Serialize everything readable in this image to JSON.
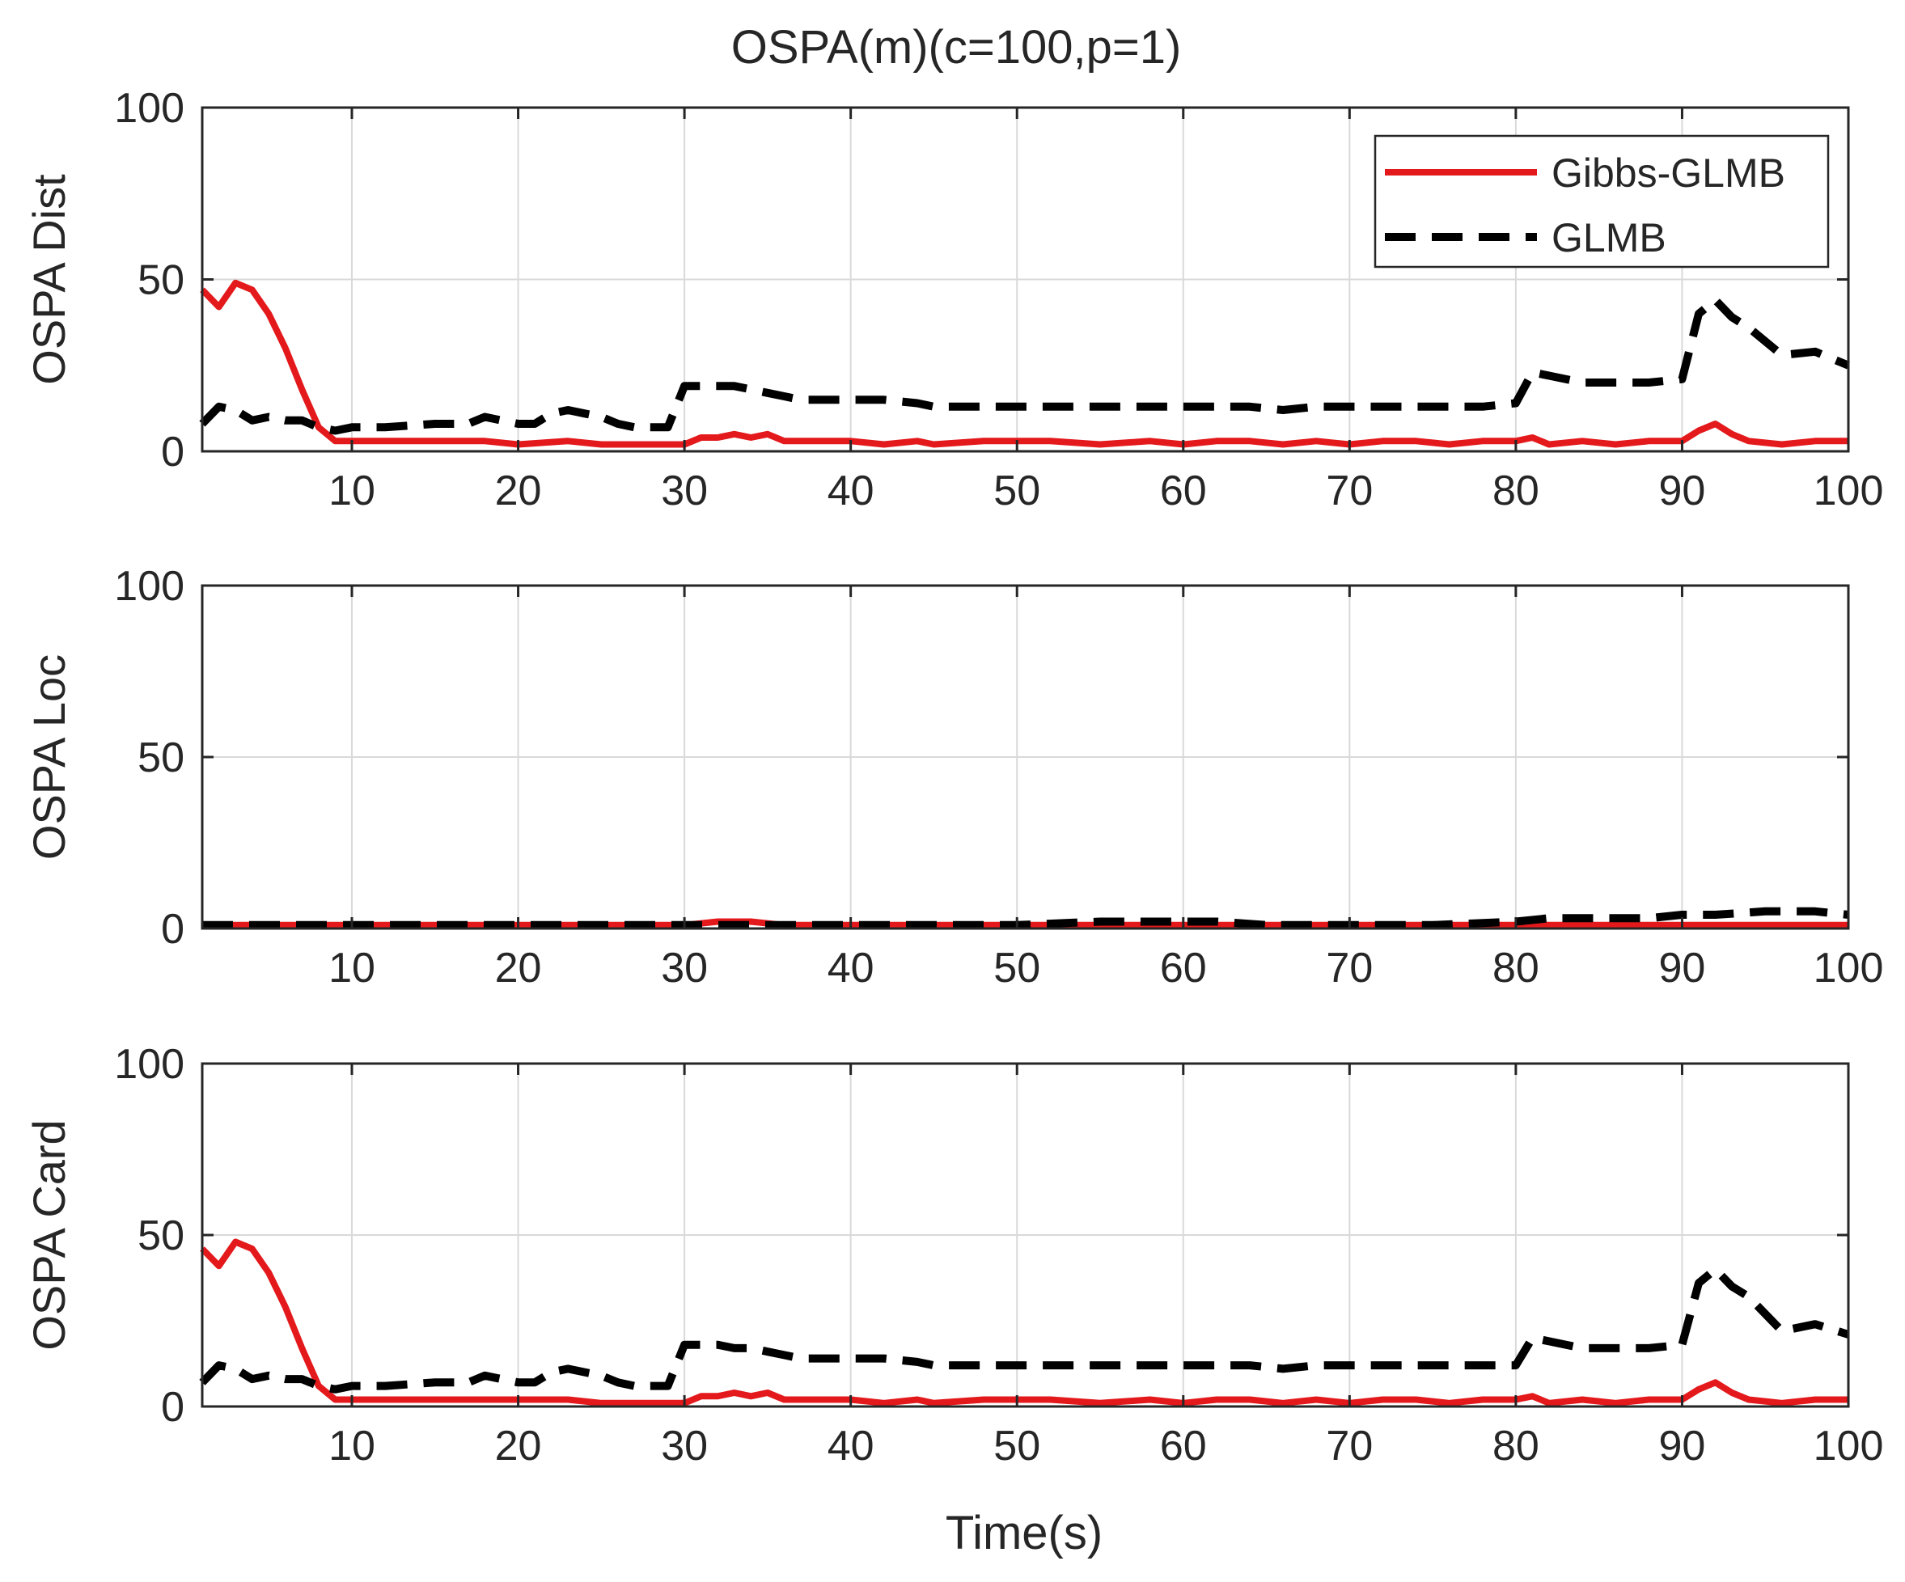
{
  "figure": {
    "title": "OSPA(m)(c=100,p=1)",
    "xlabel": "Time(s)"
  },
  "legend": {
    "position": "top-right",
    "entries": [
      "Gibbs-GLMB",
      "GLMB"
    ]
  },
  "colors": {
    "gibbs": "#e3191c",
    "glmb": "#000000"
  },
  "chart_data": [
    {
      "type": "line",
      "ylabel": "OSPA Dist",
      "xlim": [
        1,
        100
      ],
      "ylim": [
        0,
        100
      ],
      "xticks": [
        10,
        20,
        30,
        40,
        50,
        60,
        70,
        80,
        90,
        100
      ],
      "yticks": [
        0,
        50,
        100
      ],
      "grid": true,
      "series": [
        {
          "name": "Gibbs-GLMB",
          "style": "solid",
          "color": "#e3191c",
          "x": [
            1,
            2,
            3,
            4,
            5,
            6,
            7,
            8,
            9,
            10,
            12,
            15,
            18,
            20,
            23,
            25,
            28,
            30,
            31,
            32,
            33,
            34,
            35,
            36,
            37,
            38,
            40,
            42,
            44,
            45,
            48,
            50,
            52,
            55,
            58,
            60,
            62,
            64,
            66,
            68,
            70,
            72,
            74,
            76,
            78,
            80,
            81,
            82,
            84,
            86,
            88,
            90,
            91,
            92,
            93,
            94,
            96,
            98,
            100
          ],
          "y": [
            47,
            42,
            49,
            47,
            40,
            30,
            18,
            7,
            3,
            3,
            3,
            3,
            3,
            2,
            3,
            2,
            2,
            2,
            4,
            4,
            5,
            4,
            5,
            3,
            3,
            3,
            3,
            2,
            3,
            2,
            3,
            3,
            3,
            2,
            3,
            2,
            3,
            3,
            2,
            3,
            2,
            3,
            3,
            2,
            3,
            3,
            4,
            2,
            3,
            2,
            3,
            3,
            6,
            8,
            5,
            3,
            2,
            3,
            3
          ]
        },
        {
          "name": "GLMB",
          "style": "dashed",
          "color": "#000000",
          "x": [
            1,
            2,
            3,
            4,
            5,
            6,
            7,
            8,
            9,
            10,
            12,
            15,
            17,
            18,
            19,
            20,
            21,
            22,
            23,
            24,
            25,
            26,
            27,
            28,
            29,
            30,
            31,
            32,
            33,
            34,
            35,
            36,
            37,
            38,
            40,
            42,
            44,
            45,
            48,
            50,
            52,
            55,
            58,
            60,
            62,
            64,
            66,
            68,
            70,
            72,
            74,
            76,
            78,
            80,
            81,
            82,
            84,
            86,
            88,
            90,
            91,
            92,
            93,
            94,
            96,
            98,
            100
          ],
          "y": [
            8,
            13,
            12,
            9,
            10,
            9,
            9,
            7,
            6,
            7,
            7,
            8,
            8,
            10,
            9,
            8,
            8,
            11,
            12,
            11,
            10,
            8,
            7,
            7,
            7,
            19,
            19,
            19,
            19,
            18,
            17,
            16,
            15,
            15,
            15,
            15,
            14,
            13,
            13,
            13,
            13,
            13,
            13,
            13,
            13,
            13,
            12,
            13,
            13,
            13,
            13,
            13,
            13,
            14,
            23,
            22,
            20,
            20,
            20,
            21,
            40,
            44,
            39,
            36,
            28,
            29,
            25
          ]
        }
      ]
    },
    {
      "type": "line",
      "ylabel": "OSPA Loc",
      "xlim": [
        1,
        100
      ],
      "ylim": [
        0,
        100
      ],
      "xticks": [
        10,
        20,
        30,
        40,
        50,
        60,
        70,
        80,
        90,
        100
      ],
      "yticks": [
        0,
        50,
        100
      ],
      "grid": true,
      "series": [
        {
          "name": "Gibbs-GLMB",
          "style": "solid",
          "color": "#e3191c",
          "x": [
            1,
            5,
            10,
            15,
            20,
            25,
            30,
            32,
            34,
            36,
            40,
            45,
            50,
            55,
            60,
            65,
            70,
            75,
            80,
            85,
            90,
            95,
            100
          ],
          "y": [
            1,
            1,
            1,
            1,
            1,
            1,
            1,
            2,
            2,
            1,
            1,
            1,
            1,
            1,
            1,
            1,
            1,
            1,
            1,
            1,
            1,
            1,
            1
          ]
        },
        {
          "name": "GLMB",
          "style": "dashed",
          "color": "#000000",
          "x": [
            1,
            5,
            10,
            15,
            20,
            25,
            30,
            35,
            40,
            45,
            50,
            55,
            60,
            62,
            65,
            70,
            75,
            80,
            82,
            85,
            88,
            90,
            92,
            95,
            98,
            100
          ],
          "y": [
            1,
            1,
            1,
            1,
            1,
            1,
            1,
            1,
            1,
            1,
            1,
            2,
            2,
            2,
            1,
            1,
            1,
            2,
            3,
            3,
            3,
            4,
            4,
            5,
            5,
            4
          ]
        }
      ]
    },
    {
      "type": "line",
      "ylabel": "OSPA Card",
      "xlim": [
        1,
        100
      ],
      "ylim": [
        0,
        100
      ],
      "xticks": [
        10,
        20,
        30,
        40,
        50,
        60,
        70,
        80,
        90,
        100
      ],
      "yticks": [
        0,
        50,
        100
      ],
      "grid": true,
      "series": [
        {
          "name": "Gibbs-GLMB",
          "style": "solid",
          "color": "#e3191c",
          "x": [
            1,
            2,
            3,
            4,
            5,
            6,
            7,
            8,
            9,
            10,
            12,
            15,
            18,
            20,
            23,
            25,
            28,
            30,
            31,
            32,
            33,
            34,
            35,
            36,
            37,
            38,
            40,
            42,
            44,
            45,
            48,
            50,
            52,
            55,
            58,
            60,
            62,
            64,
            66,
            68,
            70,
            72,
            74,
            76,
            78,
            80,
            81,
            82,
            84,
            86,
            88,
            90,
            91,
            92,
            93,
            94,
            96,
            98,
            100
          ],
          "y": [
            46,
            41,
            48,
            46,
            39,
            29,
            17,
            6,
            2,
            2,
            2,
            2,
            2,
            2,
            2,
            1,
            1,
            1,
            3,
            3,
            4,
            3,
            4,
            2,
            2,
            2,
            2,
            1,
            2,
            1,
            2,
            2,
            2,
            1,
            2,
            1,
            2,
            2,
            1,
            2,
            1,
            2,
            2,
            1,
            2,
            2,
            3,
            1,
            2,
            1,
            2,
            2,
            5,
            7,
            4,
            2,
            1,
            2,
            2
          ]
        },
        {
          "name": "GLMB",
          "style": "dashed",
          "color": "#000000",
          "x": [
            1,
            2,
            3,
            4,
            5,
            6,
            7,
            8,
            9,
            10,
            12,
            15,
            17,
            18,
            19,
            20,
            21,
            22,
            23,
            24,
            25,
            26,
            27,
            28,
            29,
            30,
            31,
            32,
            33,
            34,
            35,
            36,
            37,
            38,
            40,
            42,
            44,
            45,
            48,
            50,
            52,
            55,
            58,
            60,
            62,
            64,
            66,
            68,
            70,
            72,
            74,
            76,
            78,
            80,
            81,
            82,
            84,
            86,
            88,
            90,
            91,
            92,
            93,
            94,
            96,
            98,
            100
          ],
          "y": [
            7,
            12,
            11,
            8,
            9,
            8,
            8,
            6,
            5,
            6,
            6,
            7,
            7,
            9,
            8,
            7,
            7,
            10,
            11,
            10,
            9,
            7,
            6,
            6,
            6,
            18,
            18,
            18,
            17,
            17,
            16,
            15,
            14,
            14,
            14,
            14,
            13,
            12,
            12,
            12,
            12,
            12,
            12,
            12,
            12,
            12,
            11,
            12,
            12,
            12,
            12,
            12,
            12,
            12,
            20,
            19,
            17,
            17,
            17,
            18,
            36,
            40,
            35,
            32,
            22,
            24,
            21
          ]
        }
      ]
    }
  ]
}
